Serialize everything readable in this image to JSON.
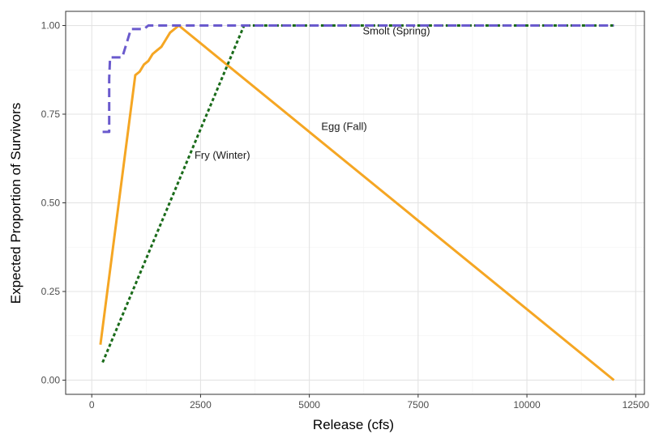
{
  "chart_data": {
    "type": "line",
    "title": "",
    "xlabel": "Release (cfs)",
    "ylabel": "Expected Proportion of Survivors",
    "xlim": [
      -600,
      12700
    ],
    "ylim": [
      -0.04,
      1.04
    ],
    "x_ticks": [
      0,
      2500,
      5000,
      7500,
      10000,
      12500
    ],
    "x_tick_labels": [
      "0",
      "2500",
      "5000",
      "7500",
      "10000",
      "12500"
    ],
    "y_ticks": [
      0,
      0.25,
      0.5,
      0.75,
      1.0
    ],
    "y_tick_labels": [
      "0.00",
      "0.25",
      "0.50",
      "0.75",
      "1.00"
    ],
    "grid": true,
    "legend": "none (direct labels)",
    "series": [
      {
        "name": "Egg (Fall)",
        "color": "#f5a623",
        "dash": "solid",
        "x": [
          200,
          1000,
          1100,
          1200,
          1300,
          1400,
          1500,
          1600,
          1700,
          1800,
          2000,
          12000
        ],
        "y": [
          0.1,
          0.86,
          0.87,
          0.89,
          0.9,
          0.92,
          0.93,
          0.94,
          0.96,
          0.98,
          1.0,
          0.0
        ]
      },
      {
        "name": "Fry (Winter)",
        "color": "#1a6b1a",
        "dash": "dotted",
        "x": [
          250,
          3500,
          12000
        ],
        "y": [
          0.05,
          1.0,
          1.0
        ]
      },
      {
        "name": "Smolt (Spring)",
        "color": "#6a5acd",
        "dash": "dashed",
        "x": [
          250,
          400,
          400,
          420,
          700,
          800,
          900,
          1200,
          1300,
          1400,
          12000
        ],
        "y": [
          0.7,
          0.7,
          0.85,
          0.91,
          0.91,
          0.95,
          0.99,
          0.99,
          1.0,
          1.0,
          1.0
        ]
      }
    ],
    "annotations": [
      {
        "text": "Smolt (Spring)",
        "x": 7000,
        "y": 0.975,
        "series": "Smolt (Spring)"
      },
      {
        "text": "Egg (Fall)",
        "x": 5800,
        "y": 0.705,
        "series": "Egg (Fall)"
      },
      {
        "text": "Fry (Winter)",
        "x": 3000,
        "y": 0.625,
        "series": "Fry (Winter)"
      }
    ]
  }
}
